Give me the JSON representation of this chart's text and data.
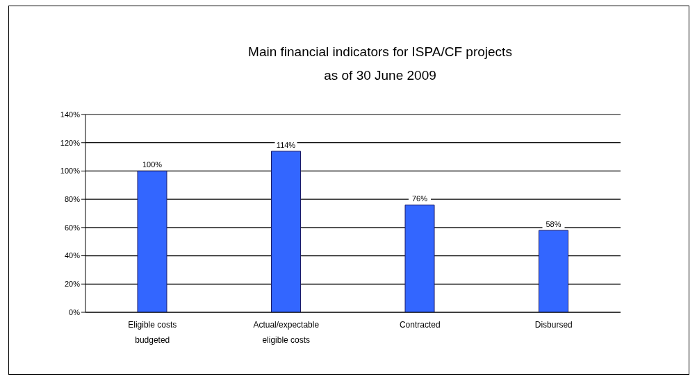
{
  "chart_data": {
    "type": "bar",
    "title": "Main financial indicators for ISPA/CF projects",
    "subtitle": "as of 30 June 2009",
    "categories": [
      "Eligible costs budgeted",
      "Actual/expectable eligible costs",
      "Contracted",
      "Disbursed"
    ],
    "values": [
      100,
      114,
      76,
      58
    ],
    "color": "#3366ff",
    "value_labels": [
      "100%",
      "114%",
      "76%",
      "58%"
    ],
    "ylim": [
      0,
      140
    ],
    "yticks": [
      {
        "value": 0,
        "label": "0%"
      },
      {
        "value": 20,
        "label": "20%"
      },
      {
        "value": 40,
        "label": "40%"
      },
      {
        "value": 60,
        "label": "60%"
      },
      {
        "value": 80,
        "label": "80%"
      },
      {
        "value": 100,
        "label": "100%"
      },
      {
        "value": 120,
        "label": "120%"
      },
      {
        "value": 140,
        "label": "140%"
      }
    ],
    "grid": "y",
    "legend": false
  }
}
